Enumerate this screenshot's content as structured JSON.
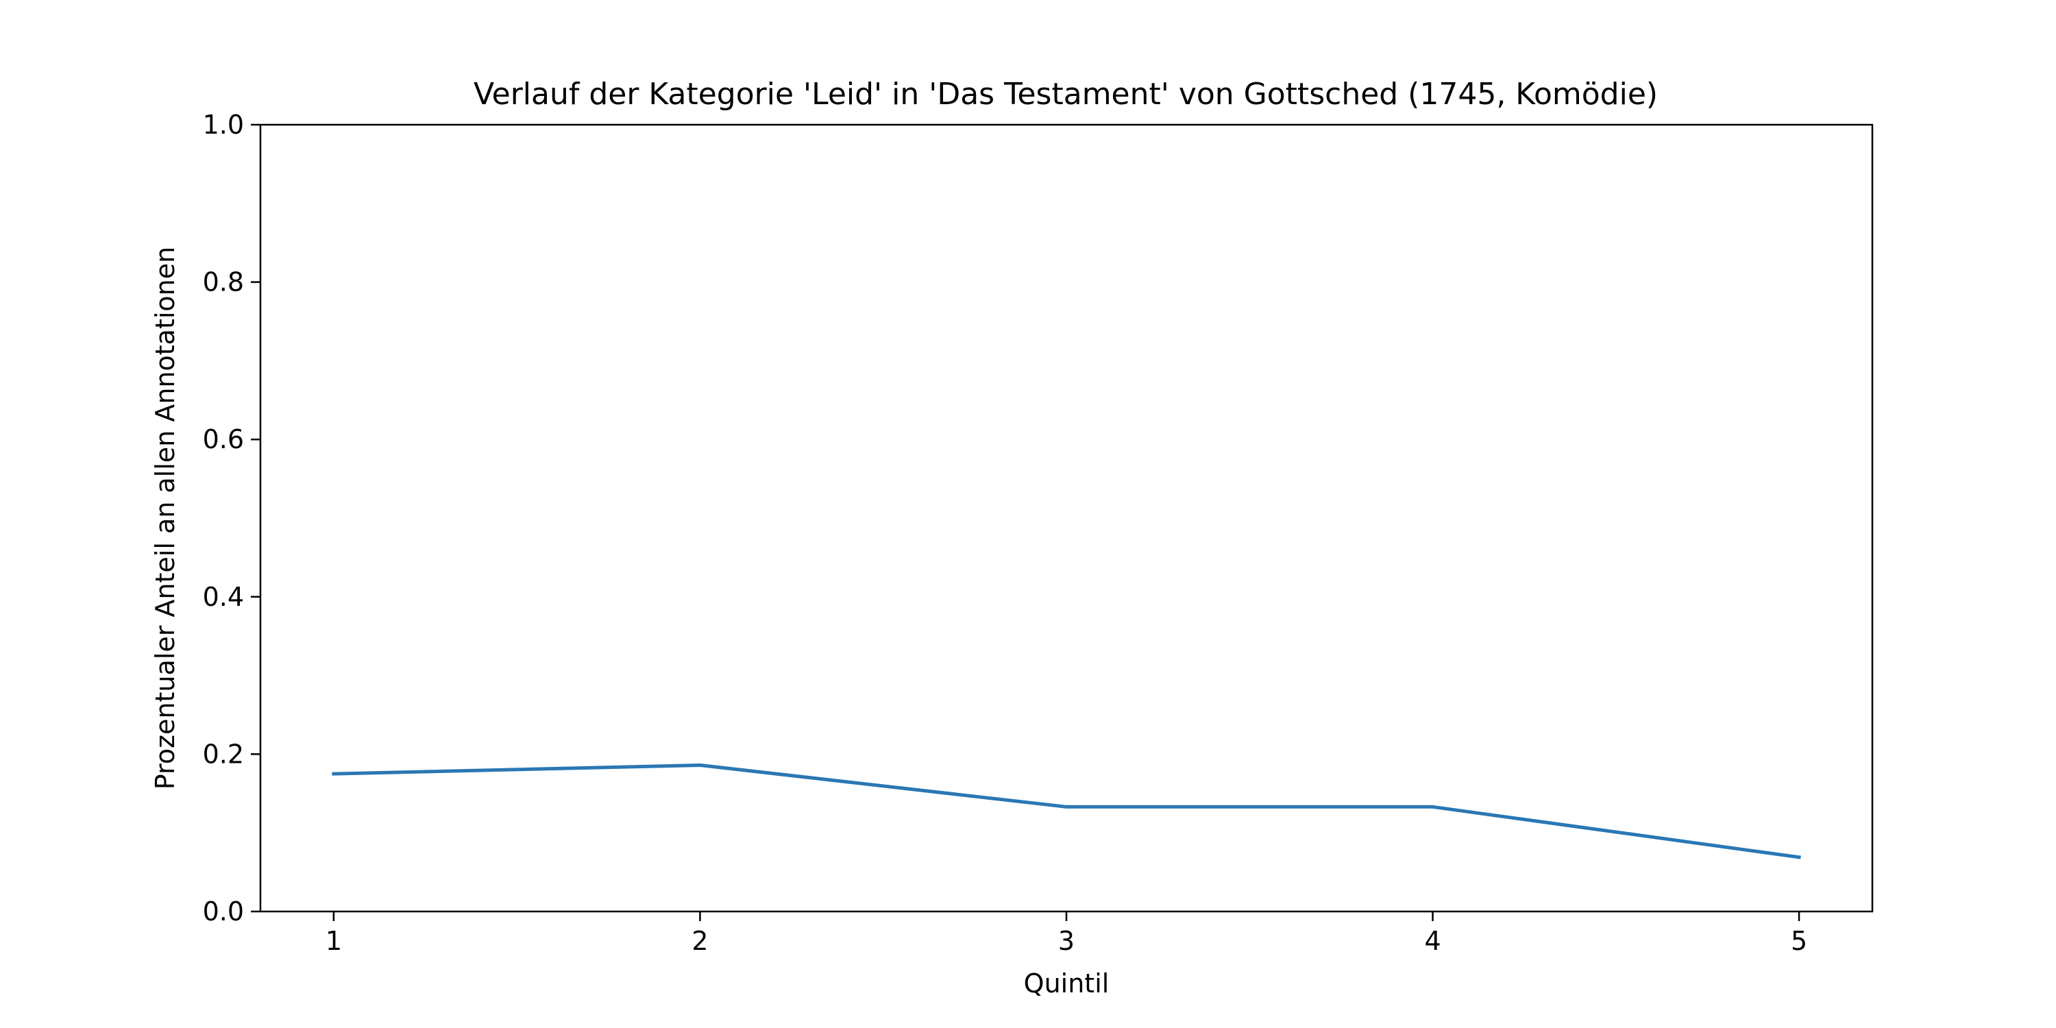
{
  "chart_data": {
    "type": "line",
    "title": "Verlauf der Kategorie 'Leid' in 'Das Testament' von Gottsched (1745, Komödie)",
    "xlabel": "Quintil",
    "ylabel": "Prozentualer Anteil an allen Annotationen",
    "x": [
      1,
      2,
      3,
      4,
      5
    ],
    "series": [
      {
        "values": [
          0.175,
          0.186,
          0.133,
          0.133,
          0.069
        ],
        "color": "#2a77b4"
      }
    ],
    "xlim": [
      0.8,
      5.2
    ],
    "ylim": [
      0.0,
      1.0
    ],
    "xticks": [
      "1",
      "2",
      "3",
      "4",
      "5"
    ],
    "yticks": [
      "0.0",
      "0.2",
      "0.4",
      "0.6",
      "0.8",
      "1.0"
    ],
    "grid": false,
    "legend": "none"
  }
}
